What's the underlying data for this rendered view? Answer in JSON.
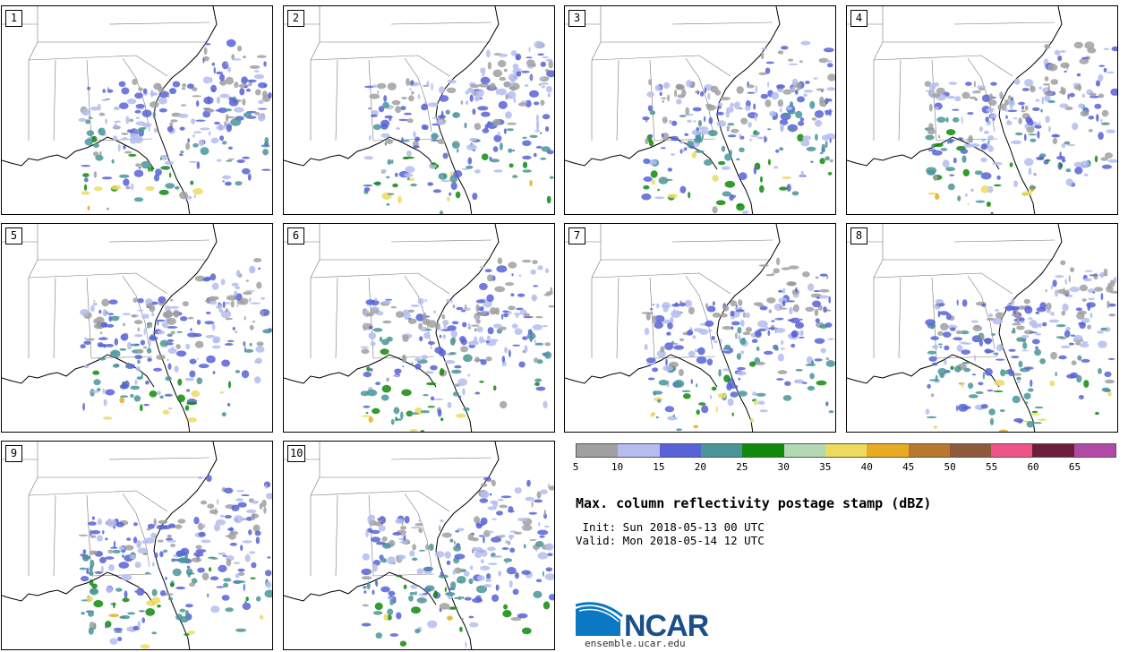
{
  "panels": [
    "1",
    "2",
    "3",
    "4",
    "5",
    "6",
    "7",
    "8",
    "9",
    "10"
  ],
  "colorbar": {
    "colors": [
      "#a0a0a0",
      "#b4bdee",
      "#5763d7",
      "#4a9597",
      "#0f8a0a",
      "#b3d9b3",
      "#ecdb5f",
      "#e9ab22",
      "#b9782d",
      "#8e5a3b",
      "#ef5486",
      "#6b1d3b",
      "#b04aa6"
    ],
    "ticks": [
      "5",
      "10",
      "15",
      "20",
      "25",
      "30",
      "35",
      "40",
      "45",
      "50",
      "55",
      "60",
      "65"
    ]
  },
  "title": "Max. column reflectivity postage stamp (dBZ)",
  "init": " Init: Sun 2018-05-13 00 UTC",
  "valid": "Valid: Mon 2018-05-14 12 UTC",
  "logo": {
    "name": "NCAR",
    "url": "ensemble.ucar.edu"
  }
}
